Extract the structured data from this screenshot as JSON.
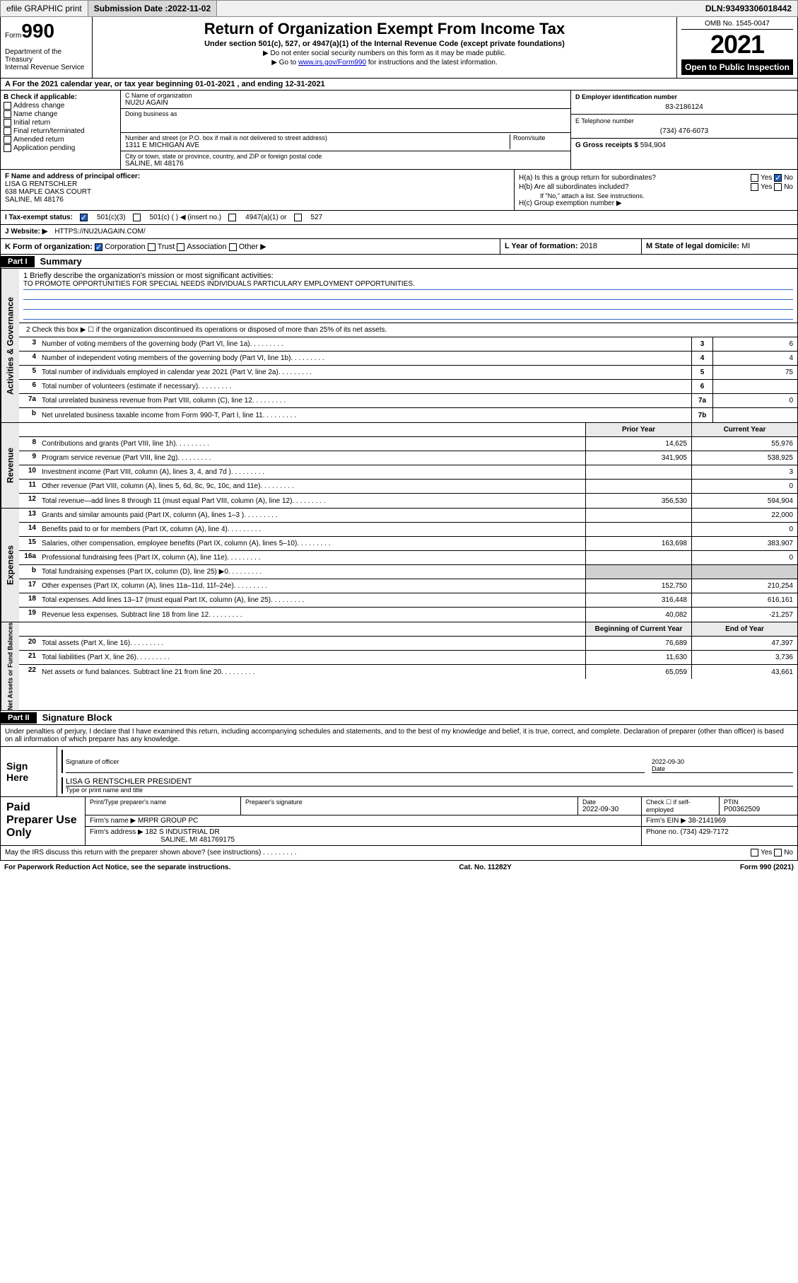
{
  "topbar": {
    "efile": "efile GRAPHIC print",
    "submission_label": "Submission Date : ",
    "submission_date": "2022-11-02",
    "dln_label": "DLN: ",
    "dln": "93493306018442"
  },
  "header": {
    "form_label": "Form",
    "form_num": "990",
    "dept": "Department of the Treasury\nInternal Revenue Service",
    "title": "Return of Organization Exempt From Income Tax",
    "subtitle": "Under section 501(c), 527, or 4947(a)(1) of the Internal Revenue Code (except private foundations)",
    "note1": "▶ Do not enter social security numbers on this form as it may be made public.",
    "note2_pre": "▶ Go to ",
    "note2_link": "www.irs.gov/Form990",
    "note2_post": " for instructions and the latest information.",
    "omb": "OMB No. 1545-0047",
    "year": "2021",
    "open_public": "Open to Public Inspection"
  },
  "row_a": "A For the 2021 calendar year, or tax year beginning 01-01-2021  , and ending 12-31-2021",
  "box_b": {
    "title": "B Check if applicable:",
    "items": [
      "Address change",
      "Name change",
      "Initial return",
      "Final return/terminated",
      "Amended return",
      "Application pending"
    ]
  },
  "box_c": {
    "name_label": "C Name of organization",
    "name": "NU2U AGAIN",
    "dba_label": "Doing business as",
    "street_label": "Number and street (or P.O. box if mail is not delivered to street address)",
    "room_label": "Room/suite",
    "street": "1311 E MICHIGAN AVE",
    "city_label": "City or town, state or province, country, and ZIP or foreign postal code",
    "city": "SALINE, MI  48176"
  },
  "box_d": {
    "ein_label": "D Employer identification number",
    "ein": "83-2186124",
    "phone_label": "E Telephone number",
    "phone": "(734) 476-6073",
    "gross_label": "G Gross receipts $ ",
    "gross": "594,904"
  },
  "box_f": {
    "label": "F Name and address of principal officer:",
    "name": "LISA G RENTSCHLER",
    "addr1": "638 MAPLE OAKS COURT",
    "addr2": "SALINE, MI  48176"
  },
  "box_h": {
    "ha_label": "H(a)  Is this a group return for subordinates?",
    "hb_label": "H(b)  Are all subordinates included?",
    "hb_note": "If \"No,\" attach a list. See instructions.",
    "hc_label": "H(c)  Group exemption number ▶",
    "yes": "Yes",
    "no": "No"
  },
  "row_i": {
    "label": "I  Tax-exempt status:",
    "opt1": "501(c)(3)",
    "opt2": "501(c) (   ) ◀ (insert no.)",
    "opt3": "4947(a)(1) or",
    "opt4": "527"
  },
  "row_j": {
    "label": "J   Website: ▶ ",
    "value": "HTTPS://NU2UAGAIN.COM/"
  },
  "row_k": {
    "label": "K Form of organization:",
    "opts": [
      "Corporation",
      "Trust",
      "Association",
      "Other ▶"
    ],
    "l_label": "L Year of formation: ",
    "l_val": "2018",
    "m_label": "M State of legal domicile: ",
    "m_val": "MI"
  },
  "part1": {
    "header": "Part I",
    "title": "Summary"
  },
  "mission": {
    "q": "1   Briefly describe the organization's mission or most significant activities:",
    "text": "TO PROMOTE OPPORTUNITIES FOR SPECIAL NEEDS INDIVIDUALS PARTICULARY EMPLOYMENT OPPORTUNITIES."
  },
  "summary": {
    "vtabs": [
      "Activities & Governance",
      "Revenue",
      "Expenses",
      "Net Assets or Fund Balances"
    ],
    "line2": "2   Check this box ▶ ☐  if the organization discontinued its operations or disposed of more than 25% of its net assets.",
    "cols": {
      "prior": "Prior Year",
      "current": "Current Year",
      "begin": "Beginning of Current Year",
      "end": "End of Year"
    },
    "rows_ag": [
      {
        "n": "3",
        "d": "Number of voting members of the governing body (Part VI, line 1a)",
        "cn": "3",
        "v": "6"
      },
      {
        "n": "4",
        "d": "Number of independent voting members of the governing body (Part VI, line 1b)",
        "cn": "4",
        "v": "4"
      },
      {
        "n": "5",
        "d": "Total number of individuals employed in calendar year 2021 (Part V, line 2a)",
        "cn": "5",
        "v": "75"
      },
      {
        "n": "6",
        "d": "Total number of volunteers (estimate if necessary)",
        "cn": "6",
        "v": ""
      },
      {
        "n": "7a",
        "d": "Total unrelated business revenue from Part VIII, column (C), line 12",
        "cn": "7a",
        "v": "0"
      },
      {
        "n": "b",
        "d": "Net unrelated business taxable income from Form 990-T, Part I, line 11",
        "cn": "7b",
        "v": ""
      }
    ],
    "rows_rev": [
      {
        "n": "8",
        "d": "Contributions and grants (Part VIII, line 1h)",
        "p": "14,625",
        "c": "55,976"
      },
      {
        "n": "9",
        "d": "Program service revenue (Part VIII, line 2g)",
        "p": "341,905",
        "c": "538,925"
      },
      {
        "n": "10",
        "d": "Investment income (Part VIII, column (A), lines 3, 4, and 7d )",
        "p": "",
        "c": "3"
      },
      {
        "n": "11",
        "d": "Other revenue (Part VIII, column (A), lines 5, 6d, 8c, 9c, 10c, and 11e)",
        "p": "",
        "c": "0"
      },
      {
        "n": "12",
        "d": "Total revenue—add lines 8 through 11 (must equal Part VIII, column (A), line 12)",
        "p": "356,530",
        "c": "594,904"
      }
    ],
    "rows_exp": [
      {
        "n": "13",
        "d": "Grants and similar amounts paid (Part IX, column (A), lines 1–3 )",
        "p": "",
        "c": "22,000"
      },
      {
        "n": "14",
        "d": "Benefits paid to or for members (Part IX, column (A), line 4)",
        "p": "",
        "c": "0"
      },
      {
        "n": "15",
        "d": "Salaries, other compensation, employee benefits (Part IX, column (A), lines 5–10)",
        "p": "163,698",
        "c": "383,907"
      },
      {
        "n": "16a",
        "d": "Professional fundraising fees (Part IX, column (A), line 11e)",
        "p": "",
        "c": "0"
      },
      {
        "n": "b",
        "d": "Total fundraising expenses (Part IX, column (D), line 25) ▶0",
        "p": "GRAY",
        "c": "GRAY"
      },
      {
        "n": "17",
        "d": "Other expenses (Part IX, column (A), lines 11a–11d, 11f–24e)",
        "p": "152,750",
        "c": "210,254"
      },
      {
        "n": "18",
        "d": "Total expenses. Add lines 13–17 (must equal Part IX, column (A), line 25)",
        "p": "316,448",
        "c": "616,161"
      },
      {
        "n": "19",
        "d": "Revenue less expenses. Subtract line 18 from line 12",
        "p": "40,082",
        "c": "-21,257"
      }
    ],
    "rows_net": [
      {
        "n": "20",
        "d": "Total assets (Part X, line 16)",
        "p": "76,689",
        "c": "47,397"
      },
      {
        "n": "21",
        "d": "Total liabilities (Part X, line 26)",
        "p": "11,630",
        "c": "3,736"
      },
      {
        "n": "22",
        "d": "Net assets or fund balances. Subtract line 21 from line 20",
        "p": "65,059",
        "c": "43,661"
      }
    ]
  },
  "part2": {
    "header": "Part II",
    "title": "Signature Block"
  },
  "penalty": "Under penalties of perjury, I declare that I have examined this return, including accompanying schedules and statements, and to the best of my knowledge and belief, it is true, correct, and complete. Declaration of preparer (other than officer) is based on all information of which preparer has any knowledge.",
  "sign": {
    "label": "Sign Here",
    "sig_of_officer": "Signature of officer",
    "date_label": "Date",
    "date": "2022-09-30",
    "name_title": "LISA G RENTSCHLER  PRESIDENT",
    "type_label": "Type or print name and title"
  },
  "paid": {
    "label": "Paid Preparer Use Only",
    "h1": "Print/Type preparer's name",
    "h2": "Preparer's signature",
    "h3": "Date",
    "h3v": "2022-09-30",
    "h4": "Check ☐ if self-employed",
    "h5": "PTIN",
    "h5v": "P00362509",
    "firm_name_label": "Firm's name    ▶ ",
    "firm_name": "MRPR GROUP PC",
    "firm_ein_label": "Firm's EIN ▶ ",
    "firm_ein": "38-2141969",
    "firm_addr_label": "Firm's address ▶ ",
    "firm_addr1": "182 S INDUSTRIAL DR",
    "firm_addr2": "SALINE, MI  481769175",
    "firm_phone_label": "Phone no. ",
    "firm_phone": "(734) 429-7172"
  },
  "footer": {
    "discuss": "May the IRS discuss this return with the preparer shown above? (see instructions)",
    "paperwork": "For Paperwork Reduction Act Notice, see the separate instructions.",
    "cat": "Cat. No. 11282Y",
    "form": "Form 990 (2021)"
  }
}
